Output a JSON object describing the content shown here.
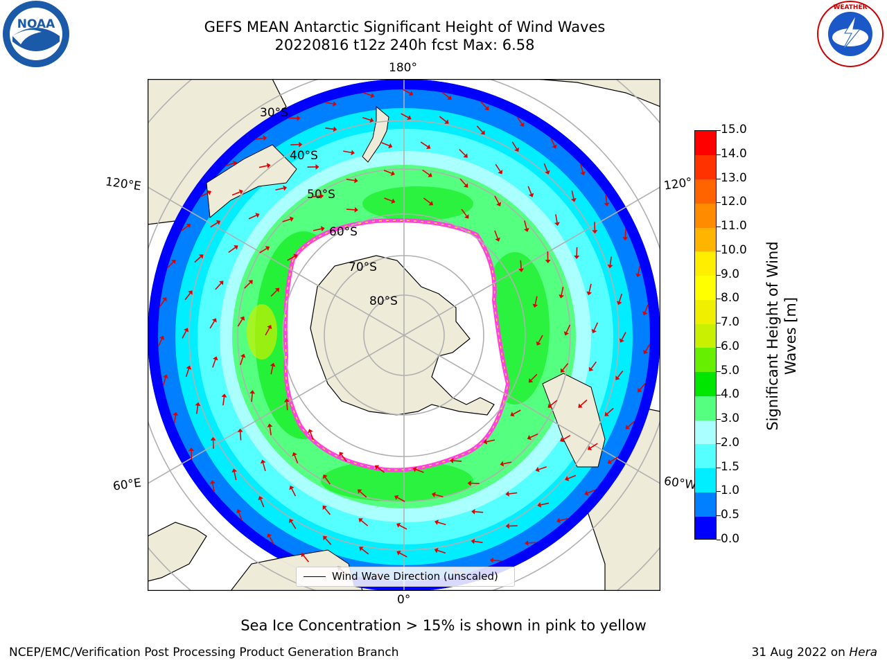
{
  "title": {
    "line1": "GEFS MEAN Antarctic Significant Height of Wind Waves",
    "line2": "20220816 t12z 240h fcst   Max: 6.58"
  },
  "logos": {
    "left": {
      "name": "noaa-logo",
      "text": "NOAA"
    },
    "right": {
      "name": "national-weather-service-logo",
      "text": "NATIONAL WEATHER SERVICE"
    }
  },
  "map": {
    "projection": "south-polar-stereographic",
    "longitude_labels": {
      "top": "180°",
      "bottom": "0°",
      "upper_left": "120°E",
      "upper_right": "120°",
      "lower_left": "60°E",
      "lower_right": "60°W"
    },
    "latitude_labels": [
      "30°S",
      "40°S",
      "50°S",
      "60°S",
      "70°S",
      "80°S"
    ],
    "vector_type": "wind-wave-direction-arrows",
    "colors": {
      "land": "#efebd9",
      "ice_free_ocean": "#ffffff",
      "grid": "#b0b0b0",
      "arrow": "#e00000",
      "sea_ice_pink": "#ff44dd",
      "sea_ice_yellow": "#ffdd44"
    }
  },
  "legend": {
    "label": "Wind Wave Direction (unscaled)"
  },
  "colorbar": {
    "label": "Significant Height of Wind Waves [m]",
    "ticks": [
      "0.0",
      "0.5",
      "1.0",
      "1.5",
      "2.0",
      "3.0",
      "4.0",
      "5.0",
      "6.0",
      "7.0",
      "8.0",
      "9.0",
      "10.0",
      "11.0",
      "12.0",
      "13.0",
      "14.0",
      "15.0"
    ],
    "colors": [
      "#0000ff",
      "#0080ff",
      "#00eeff",
      "#55ffff",
      "#aaffff",
      "#55ff7f",
      "#00e600",
      "#66f000",
      "#c8f000",
      "#eef000",
      "#ffff00",
      "#ffee00",
      "#ffb400",
      "#ff8c00",
      "#ff6400",
      "#ff3200",
      "#ff0000"
    ]
  },
  "subtitle": "Sea Ice Concentration > 15% is shown in pink to yellow",
  "footer": {
    "left": "NCEP/EMC/Verification Post Processing Product Generation Branch",
    "right_date": "31 Aug 2022 on ",
    "right_host": "Hera"
  }
}
